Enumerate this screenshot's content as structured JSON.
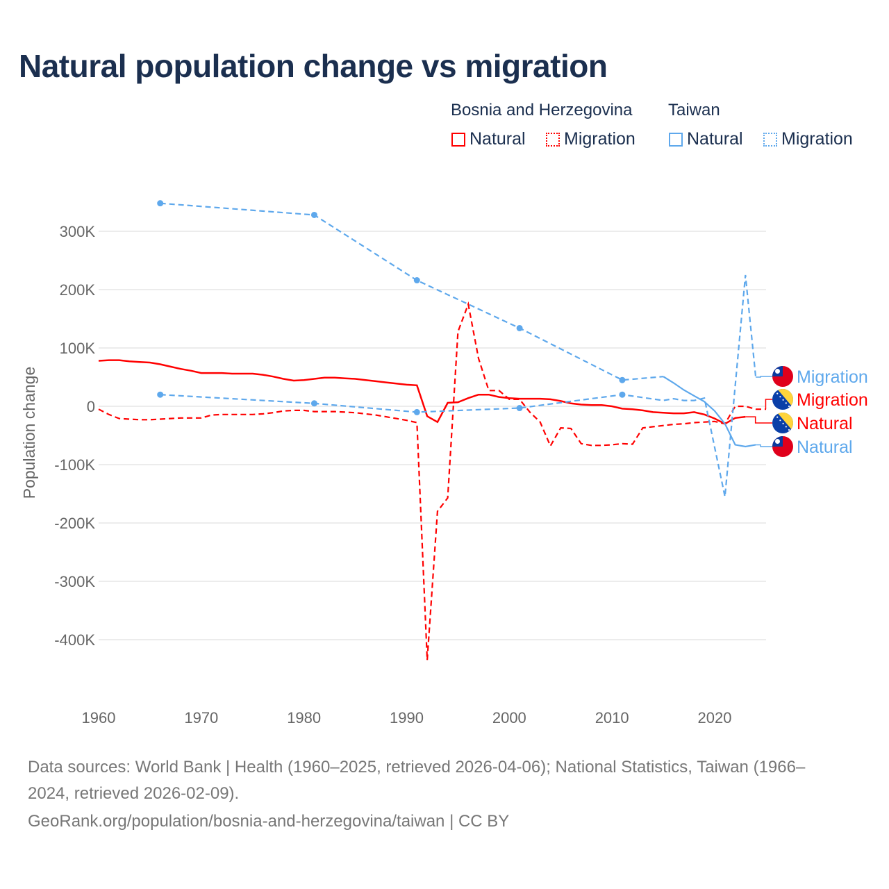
{
  "title": "Natural population change vs migration",
  "legend": {
    "groups": [
      {
        "label": "Bosnia and Herzegovina",
        "items": [
          {
            "label": "Natural",
            "style": "solid"
          },
          {
            "label": "Migration",
            "style": "dotted"
          }
        ],
        "color": "#ff0000"
      },
      {
        "label": "Taiwan",
        "items": [
          {
            "label": "Natural",
            "style": "solid"
          },
          {
            "label": "Migration",
            "style": "dotted"
          }
        ],
        "color": "#5ea8ec"
      }
    ]
  },
  "chart_data": {
    "type": "line",
    "title": "Natural population change vs migration",
    "xlabel": "",
    "ylabel": "Population change",
    "xlim": [
      1960,
      2025
    ],
    "ylim": [
      -450000,
      400000
    ],
    "x_ticks": [
      1960,
      1970,
      1980,
      1990,
      2000,
      2010,
      2020
    ],
    "x_tick_labels": [
      "1960",
      "1970",
      "1980",
      "1990",
      "2000",
      "2010",
      "2020"
    ],
    "y_ticks": [
      300000,
      200000,
      100000,
      0,
      -100000,
      -200000,
      -300000,
      -400000
    ],
    "y_tick_labels": [
      "300K",
      "200K",
      "100K",
      "0",
      "-100K",
      "-200K",
      "-300K",
      "-400K"
    ],
    "grid": true,
    "series": [
      {
        "name": "Bosnia and Herzegovina Natural",
        "end_label": "Natural",
        "flag": "bosnia",
        "color": "#ff0000",
        "dash": "solid",
        "x": [
          1960,
          1961,
          1962,
          1963,
          1964,
          1965,
          1966,
          1967,
          1968,
          1969,
          1970,
          1971,
          1972,
          1973,
          1974,
          1975,
          1976,
          1977,
          1978,
          1979,
          1980,
          1981,
          1982,
          1983,
          1984,
          1985,
          1986,
          1987,
          1988,
          1989,
          1990,
          1991,
          1992,
          1993,
          1994,
          1995,
          1996,
          1997,
          1998,
          1999,
          2000,
          2001,
          2002,
          2003,
          2004,
          2005,
          2006,
          2007,
          2008,
          2009,
          2010,
          2011,
          2012,
          2013,
          2014,
          2015,
          2016,
          2017,
          2018,
          2019,
          2020,
          2021,
          2022,
          2023
        ],
        "y": [
          78000,
          79000,
          79000,
          77000,
          76000,
          75000,
          72000,
          68000,
          64000,
          61000,
          57000,
          57000,
          57000,
          56000,
          56000,
          56000,
          54000,
          51000,
          47000,
          44000,
          45000,
          47000,
          49000,
          49000,
          48000,
          47000,
          45000,
          43000,
          41000,
          39000,
          37000,
          36000,
          -17000,
          -27000,
          6000,
          7000,
          14000,
          20000,
          20000,
          16000,
          14000,
          13000,
          13000,
          13000,
          12000,
          9000,
          5000,
          3000,
          2000,
          2000,
          0,
          -4000,
          -5000,
          -7000,
          -10000,
          -11000,
          -12000,
          -12000,
          -10000,
          -14000,
          -21000,
          -30000,
          -20000,
          -18000
        ]
      },
      {
        "name": "Bosnia and Herzegovina Migration",
        "end_label": "Migration",
        "flag": "bosnia",
        "color": "#ff0000",
        "dash": "dashed",
        "x": [
          1960,
          1961,
          1962,
          1963,
          1964,
          1965,
          1966,
          1967,
          1968,
          1969,
          1970,
          1971,
          1972,
          1973,
          1974,
          1975,
          1976,
          1977,
          1978,
          1979,
          1980,
          1981,
          1982,
          1983,
          1984,
          1985,
          1986,
          1987,
          1988,
          1989,
          1990,
          1991,
          1992,
          1993,
          1994,
          1995,
          1996,
          1997,
          1998,
          1999,
          2000,
          2001,
          2002,
          2003,
          2004,
          2005,
          2006,
          2007,
          2008,
          2009,
          2010,
          2011,
          2012,
          2013,
          2014,
          2015,
          2016,
          2017,
          2018,
          2019,
          2020,
          2021,
          2022,
          2023,
          2024,
          2025
        ],
        "y": [
          -5000,
          -14000,
          -21000,
          -22000,
          -23000,
          -23000,
          -22000,
          -21000,
          -20000,
          -20000,
          -20000,
          -15000,
          -14000,
          -14000,
          -14000,
          -14000,
          -13000,
          -11000,
          -8000,
          -7000,
          -7000,
          -9000,
          -9000,
          -9000,
          -10000,
          -11000,
          -13000,
          -15000,
          -18000,
          -21000,
          -24000,
          -28000,
          -435000,
          -180000,
          -157000,
          128000,
          175000,
          82000,
          27000,
          27000,
          12000,
          12000,
          -10000,
          -27000,
          -68000,
          -37000,
          -38000,
          -64000,
          -67000,
          -67000,
          -66000,
          -64000,
          -65000,
          -37000,
          -35000,
          -33000,
          -31000,
          -30000,
          -28000,
          -27000,
          -26000,
          -30000,
          0,
          0,
          -5000,
          -5000
        ]
      },
      {
        "name": "Taiwan Natural",
        "end_label": "Natural",
        "flag": "taiwan",
        "color": "#5ea8ec",
        "dash": "dashed-then-solid",
        "x": [
          1966,
          1981,
          1991,
          2001,
          2011,
          2015,
          2016,
          2017,
          2018,
          2019,
          2020,
          2021,
          2022,
          2023,
          2024
        ],
        "y": [
          348000,
          328000,
          216000,
          134000,
          45000,
          51000,
          40000,
          28000,
          18000,
          8000,
          -8000,
          -30000,
          -66000,
          -69000,
          -66000
        ]
      },
      {
        "name": "Taiwan Migration",
        "end_label": "Migration",
        "flag": "taiwan",
        "color": "#5ea8ec",
        "dash": "dashed",
        "x": [
          1966,
          1981,
          1991,
          2001,
          2011,
          2015,
          2016,
          2017,
          2018,
          2019,
          2021,
          2023,
          2024
        ],
        "y": [
          20000,
          5000,
          -10000,
          -3000,
          20000,
          10000,
          13000,
          10000,
          10000,
          14000,
          -155000,
          225000,
          50000
        ]
      }
    ]
  },
  "footer": {
    "line1": "Data sources: World Bank | Health (1960–2025, retrieved 2026-04-06); National Statistics, Taiwan (1966–",
    "line2": "2024, retrieved 2026-02-09).",
    "line3": "GeoRank.org/population/bosnia-and-herzegovina/taiwan | CC BY"
  }
}
